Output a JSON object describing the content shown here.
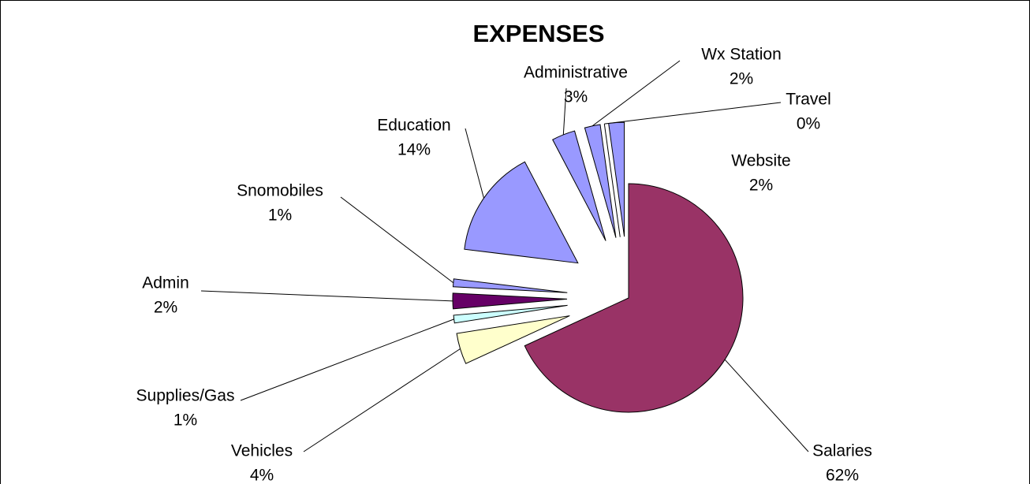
{
  "chart_data": {
    "type": "pie",
    "title": "EXPENSES",
    "categories": [
      "Salaries",
      "Vehicles",
      "Supplies/Gas",
      "Admin",
      "Snomobiles",
      "Education",
      "Administrative",
      "Wx Station",
      "Travel",
      "Website"
    ],
    "values": [
      62,
      4,
      1,
      2,
      1,
      14,
      3,
      2,
      0,
      2
    ],
    "value_labels": [
      "62%",
      "4%",
      "1%",
      "2%",
      "1%",
      "14%",
      "3%",
      "2%",
      "0%",
      "2%"
    ],
    "colors": [
      "#993366",
      "#ffffcc",
      "#ccffff",
      "#660066",
      "#9999ff",
      "#9999ff",
      "#9999ff",
      "#9999ff",
      "#9999ff",
      "#9999ff"
    ]
  }
}
